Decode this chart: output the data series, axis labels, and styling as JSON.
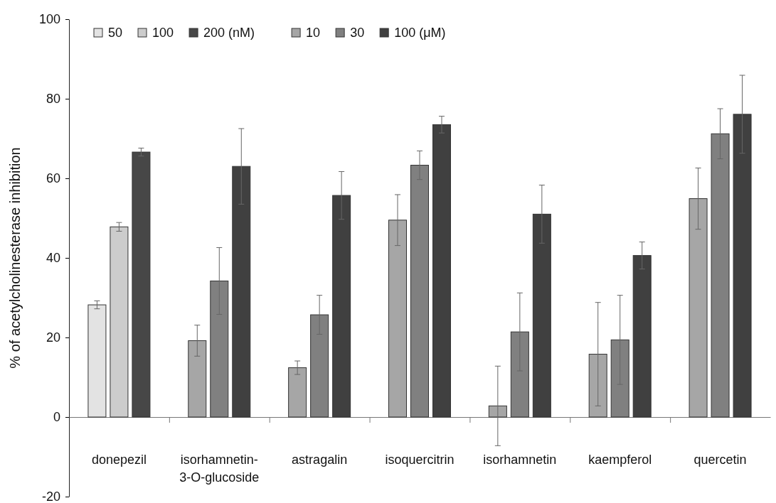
{
  "chart_data": {
    "type": "bar",
    "ylabel": "% of acetylcholinesterase inhibition",
    "categories": [
      "donepezil",
      "isorhamnetin-\n3-O-glucoside",
      "astragalin",
      "isoquercitrin",
      "isorhamnetin",
      "kaempferol",
      "quercetin"
    ],
    "series": [
      {
        "name": "50",
        "color": "#e3e3e3",
        "values": [
          28.2,
          null,
          null,
          null,
          null,
          null,
          null
        ],
        "errors": [
          1.0,
          null,
          null,
          null,
          null,
          null,
          null
        ]
      },
      {
        "name": "100",
        "color": "#cccccc",
        "values": [
          47.8,
          null,
          null,
          null,
          null,
          null,
          null
        ],
        "errors": [
          1.1,
          null,
          null,
          null,
          null,
          null,
          null
        ]
      },
      {
        "name": "200 (nM)",
        "color": "#474747",
        "values": [
          66.6,
          null,
          null,
          null,
          null,
          null,
          null
        ],
        "errors": [
          1.0,
          null,
          null,
          null,
          null,
          null,
          null
        ]
      },
      {
        "name": "10",
        "color": "#a6a6a6",
        "values": [
          null,
          19.2,
          12.4,
          49.5,
          2.8,
          15.8,
          54.9
        ],
        "errors": [
          null,
          3.9,
          1.7,
          6.4,
          10,
          13,
          7.7
        ]
      },
      {
        "name": "30",
        "color": "#808080",
        "values": [
          null,
          34.2,
          25.7,
          63.3,
          21.4,
          19.4,
          71.2
        ],
        "errors": [
          null,
          8.4,
          4.9,
          3.6,
          9.8,
          11.2,
          6.3
        ]
      },
      {
        "name": "100 (μM)",
        "color": "#404040",
        "values": [
          null,
          63,
          55.7,
          73.5,
          51,
          40.6,
          76.1
        ],
        "errors": [
          null,
          9.5,
          6,
          2.1,
          7.3,
          3.4,
          9.8
        ]
      }
    ],
    "ylim": [
      -20,
      100
    ],
    "yticks": [
      -20,
      0,
      20,
      40,
      60,
      80,
      100
    ],
    "legend": "top left"
  }
}
